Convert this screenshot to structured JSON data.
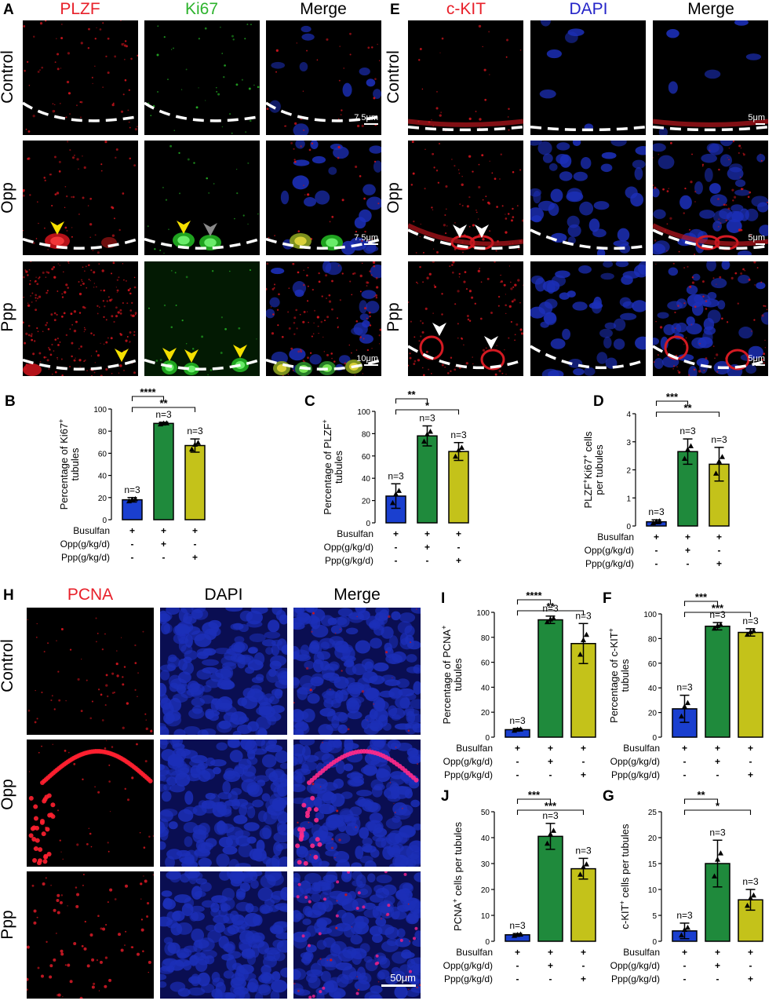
{
  "panels": {
    "A": {
      "label": "A",
      "columns": [
        "PLZF",
        "Ki67",
        "Merge"
      ],
      "column_colors": [
        "#e8202a",
        "#2db32d",
        "#000000"
      ],
      "rows": [
        "Control",
        "Opp",
        "Ppp"
      ],
      "scalebars": [
        "7.5μm",
        "7.5μm",
        "10μm"
      ]
    },
    "E": {
      "label": "E",
      "columns": [
        "c-KIT",
        "DAPI",
        "Merge"
      ],
      "column_colors": [
        "#e8202a",
        "#2424c8",
        "#000000"
      ],
      "rows": [
        "Control",
        "Opp",
        "Ppp"
      ],
      "scalebars": [
        "5μm",
        "5μm",
        "5μm"
      ]
    },
    "H": {
      "label": "H",
      "columns": [
        "PCNA",
        "DAPI",
        "Merge"
      ],
      "column_colors": [
        "#e8202a",
        "#000000",
        "#000000"
      ],
      "rows": [
        "Control",
        "Opp",
        "Ppp"
      ],
      "scalebar": "50μm"
    }
  },
  "treatment_table": {
    "rows": [
      "Busulfan",
      "Opp(g/kg/d)",
      "Ppp(g/kg/d)"
    ],
    "signs": [
      [
        "+",
        "+",
        "+"
      ],
      [
        "-",
        "+",
        "-"
      ],
      [
        "-",
        "-",
        "+"
      ]
    ]
  },
  "colors": {
    "control": "#1a3fcf",
    "opp": "#1f8a3c",
    "ppp": "#c4c21a"
  },
  "chart_data": [
    {
      "id": "B",
      "label": "B",
      "type": "bar",
      "ylabel_main": "Percentage of Ki67",
      "ylabel_sup": "+",
      "ylabel_line2": "tubules",
      "ylim": [
        0,
        100
      ],
      "yticks": [
        0,
        20,
        40,
        60,
        80,
        100
      ],
      "values": [
        18,
        87,
        67
      ],
      "errors": [
        2,
        1,
        6
      ],
      "ns": [
        "n=3",
        "n=3",
        "n=3"
      ],
      "bar_colors": [
        "#1a3fcf",
        "#1f8a3c",
        "#c4c21a"
      ],
      "sig": [
        {
          "from": 0,
          "to": 1,
          "label": "****"
        },
        {
          "from": 0,
          "to": 2,
          "label": "**"
        }
      ]
    },
    {
      "id": "C",
      "label": "C",
      "type": "bar",
      "ylabel_main": "Percentage of PLZF",
      "ylabel_sup": "+",
      "ylabel_line2": "tubules",
      "ylim": [
        0,
        100
      ],
      "yticks": [
        0,
        20,
        40,
        60,
        80,
        100
      ],
      "values": [
        24,
        78,
        64
      ],
      "errors": [
        11,
        9,
        8
      ],
      "ns": [
        "n=3",
        "n=3",
        "n=3"
      ],
      "bar_colors": [
        "#1a3fcf",
        "#1f8a3c",
        "#c4c21a"
      ],
      "sig": [
        {
          "from": 0,
          "to": 1,
          "label": "**"
        },
        {
          "from": 0,
          "to": 2,
          "label": "*"
        }
      ]
    },
    {
      "id": "D",
      "label": "D",
      "type": "bar",
      "ylabel_main": "PLZF",
      "ylabel_sup": "+",
      "ylabel_main2": "Ki67",
      "ylabel_sup2": "+",
      "ylabel_tail": " cells",
      "ylabel_line2": "per tubules",
      "ylim": [
        0,
        4
      ],
      "yticks": [
        0,
        1,
        2,
        3,
        4
      ],
      "values": [
        0.15,
        2.65,
        2.2
      ],
      "errors": [
        0.07,
        0.45,
        0.6
      ],
      "ns": [
        "n=3",
        "n=3",
        "n=3"
      ],
      "bar_colors": [
        "#1a3fcf",
        "#1f8a3c",
        "#c4c21a"
      ],
      "sig": [
        {
          "from": 0,
          "to": 1,
          "label": "***"
        },
        {
          "from": 0,
          "to": 2,
          "label": "**"
        }
      ]
    },
    {
      "id": "I",
      "label": "I",
      "type": "bar",
      "ylabel_main": "Percentage of PCNA",
      "ylabel_sup": "+",
      "ylabel_line2": "tubules",
      "ylim": [
        0,
        100
      ],
      "yticks": [
        0,
        20,
        40,
        60,
        80,
        100
      ],
      "values": [
        6,
        94,
        75
      ],
      "errors": [
        1,
        3,
        16
      ],
      "ns": [
        "n=3",
        "n=3",
        "n=3"
      ],
      "bar_colors": [
        "#1a3fcf",
        "#1f8a3c",
        "#c4c21a"
      ],
      "sig": [
        {
          "from": 0,
          "to": 1,
          "label": "****"
        },
        {
          "from": 0,
          "to": 2,
          "label": "**"
        }
      ]
    },
    {
      "id": "F",
      "label": "F",
      "type": "bar",
      "ylabel_main": "Percentage of c-KIT",
      "ylabel_sup": "+",
      "ylabel_line2": "tubules",
      "ylim": [
        0,
        100
      ],
      "yticks": [
        0,
        20,
        40,
        60,
        80,
        100
      ],
      "values": [
        23,
        90,
        85
      ],
      "errors": [
        11,
        3,
        3
      ],
      "ns": [
        "n=3",
        "n=3",
        "n=3"
      ],
      "bar_colors": [
        "#1a3fcf",
        "#1f8a3c",
        "#c4c21a"
      ],
      "sig": [
        {
          "from": 0,
          "to": 1,
          "label": "***"
        },
        {
          "from": 0,
          "to": 2,
          "label": "***"
        }
      ]
    },
    {
      "id": "J",
      "label": "J",
      "type": "bar",
      "ylabel_main": "PCNA",
      "ylabel_sup": "+",
      "ylabel_tail": " cells per tubules",
      "ylabel_line2": "",
      "ylim": [
        0,
        50
      ],
      "yticks": [
        0,
        10,
        20,
        30,
        40,
        50
      ],
      "values": [
        2.5,
        40.5,
        28
      ],
      "errors": [
        0.5,
        5,
        4
      ],
      "ns": [
        "n=3",
        "n=3",
        "n=3"
      ],
      "bar_colors": [
        "#1a3fcf",
        "#1f8a3c",
        "#c4c21a"
      ],
      "sig": [
        {
          "from": 0,
          "to": 1,
          "label": "***"
        },
        {
          "from": 0,
          "to": 2,
          "label": "***"
        }
      ]
    },
    {
      "id": "G",
      "label": "G",
      "type": "bar",
      "ylabel_main": "c-KIT",
      "ylabel_sup": "+",
      "ylabel_tail": " cells per tubules",
      "ylabel_line2": "",
      "ylim": [
        0,
        25
      ],
      "yticks": [
        0,
        5,
        10,
        15,
        20,
        25
      ],
      "values": [
        2,
        15,
        8
      ],
      "errors": [
        1.5,
        4.5,
        2
      ],
      "ns": [
        "n=3",
        "n=3",
        "n=3"
      ],
      "bar_colors": [
        "#1a3fcf",
        "#1f8a3c",
        "#c4c21a"
      ],
      "sig": [
        {
          "from": 0,
          "to": 1,
          "label": "**"
        },
        {
          "from": 0,
          "to": 2,
          "label": "*"
        }
      ]
    }
  ]
}
